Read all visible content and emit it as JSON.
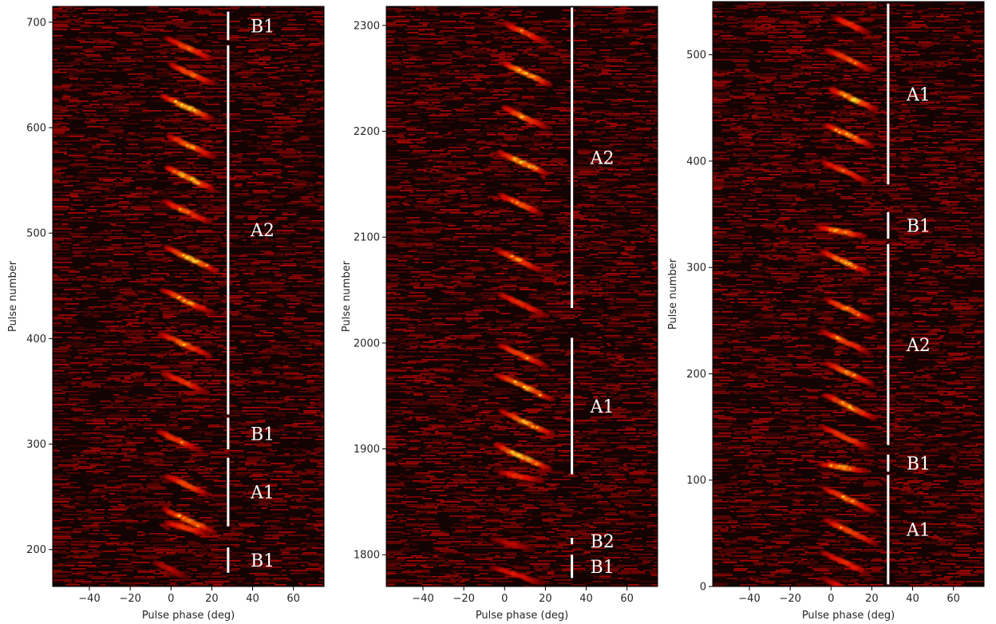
{
  "chart_data": [
    {
      "type": "heatmap",
      "xlabel": "Pulse phase (deg)",
      "ylabel": "Pulse number",
      "xlim": [
        -58,
        75
      ],
      "ylim": [
        165,
        715
      ],
      "xticks": [
        -40,
        -20,
        0,
        20,
        40,
        60
      ],
      "xtick_labels": [
        "−40",
        "−20",
        "0",
        "20",
        "40",
        "60"
      ],
      "yticks": [
        200,
        300,
        400,
        500,
        600,
        700
      ],
      "ytick_labels": [
        "200",
        "300",
        "400",
        "500",
        "600",
        "700"
      ],
      "drift_bands": [
        {
          "p": 685,
          "phi0": -2,
          "slope": 0.9,
          "span": 22,
          "strength": 0.8
        },
        {
          "p": 660,
          "phi0": 0,
          "slope": 0.9,
          "span": 20,
          "strength": 0.85
        },
        {
          "p": 630,
          "phi0": -4,
          "slope": 0.9,
          "span": 24,
          "strength": 1.0
        },
        {
          "p": 592,
          "phi0": -1,
          "slope": 0.9,
          "span": 22,
          "strength": 0.85
        },
        {
          "p": 562,
          "phi0": -2,
          "slope": 0.9,
          "span": 22,
          "strength": 1.0
        },
        {
          "p": 530,
          "phi0": -3,
          "slope": 0.9,
          "span": 22,
          "strength": 0.8
        },
        {
          "p": 486,
          "phi0": -2,
          "slope": 0.9,
          "span": 24,
          "strength": 1.0
        },
        {
          "p": 446,
          "phi0": -4,
          "slope": 0.9,
          "span": 24,
          "strength": 0.85
        },
        {
          "p": 405,
          "phi0": -5,
          "slope": 0.9,
          "span": 24,
          "strength": 0.85
        },
        {
          "p": 368,
          "phi0": -4,
          "slope": 0.9,
          "span": 22,
          "strength": 0.7
        },
        {
          "p": 312,
          "phi0": -6,
          "slope": 0.9,
          "span": 20,
          "strength": 0.75
        },
        {
          "p": 270,
          "phi0": -2,
          "slope": 0.9,
          "span": 20,
          "strength": 0.8
        },
        {
          "p": 238,
          "phi0": -3,
          "slope": 0.9,
          "span": 24,
          "strength": 0.9
        },
        {
          "p": 225,
          "phi0": -2,
          "slope": 0.5,
          "span": 20,
          "strength": 0.75
        },
        {
          "p": 188,
          "phi0": -8,
          "slope": 0.9,
          "span": 16,
          "strength": 0.45
        }
      ],
      "mode_segments": [
        {
          "label": "B1",
          "start": 683,
          "end": 710
        },
        {
          "label": "A2",
          "start": 328,
          "end": 678
        },
        {
          "label": "B1",
          "start": 295,
          "end": 325
        },
        {
          "label": "A1",
          "start": 222,
          "end": 287
        },
        {
          "label": "B1",
          "start": 178,
          "end": 202
        }
      ],
      "segment_phase": 28,
      "label_phase": 39
    },
    {
      "type": "heatmap",
      "xlabel": "Pulse phase (deg)",
      "ylabel": "Pulse number",
      "xlim": [
        -58,
        75
      ],
      "ylim": [
        1770,
        2318
      ],
      "xticks": [
        -40,
        -20,
        0,
        20,
        40,
        60
      ],
      "xtick_labels": [
        "−40",
        "−20",
        "0",
        "20",
        "40",
        "60"
      ],
      "yticks": [
        1800,
        1900,
        2000,
        2100,
        2200,
        2300
      ],
      "ytick_labels": [
        "1800",
        "1900",
        "2000",
        "2100",
        "2200",
        "2300"
      ],
      "drift_bands": [
        {
          "p": 2302,
          "phi0": 0,
          "slope": 0.9,
          "span": 20,
          "strength": 0.75
        },
        {
          "p": 2264,
          "phi0": 0,
          "slope": 0.9,
          "span": 22,
          "strength": 1.0
        },
        {
          "p": 2222,
          "phi0": 0,
          "slope": 0.9,
          "span": 20,
          "strength": 0.85
        },
        {
          "p": 2180,
          "phi0": -2,
          "slope": 0.9,
          "span": 22,
          "strength": 1.0
        },
        {
          "p": 2140,
          "phi0": -2,
          "slope": 0.9,
          "span": 20,
          "strength": 0.8
        },
        {
          "p": 2088,
          "phi0": -4,
          "slope": 0.9,
          "span": 22,
          "strength": 0.8
        },
        {
          "p": 2046,
          "phi0": -2,
          "slope": 0.9,
          "span": 22,
          "strength": 0.7
        },
        {
          "p": 1998,
          "phi0": -2,
          "slope": 0.9,
          "span": 22,
          "strength": 0.8
        },
        {
          "p": 1970,
          "phi0": -3,
          "slope": 0.9,
          "span": 26,
          "strength": 1.0
        },
        {
          "p": 1936,
          "phi0": -2,
          "slope": 0.9,
          "span": 26,
          "strength": 0.9
        },
        {
          "p": 1904,
          "phi0": -4,
          "slope": 0.9,
          "span": 26,
          "strength": 1.0
        },
        {
          "p": 1878,
          "phi0": -2,
          "slope": 0.4,
          "span": 20,
          "strength": 0.7
        },
        {
          "p": 1815,
          "phi0": -6,
          "slope": 0.5,
          "span": 20,
          "strength": 0.45
        },
        {
          "p": 1788,
          "phi0": -6,
          "slope": 0.6,
          "span": 24,
          "strength": 0.6
        }
      ],
      "mode_segments": [
        {
          "label": "A2",
          "start": 2033,
          "end": 2317
        },
        {
          "label": "A1",
          "start": 1876,
          "end": 2005
        },
        {
          "label": "B2",
          "start": 1810,
          "end": 1816
        },
        {
          "label": "B1",
          "start": 1778,
          "end": 1800
        }
      ],
      "segment_phase": 33,
      "label_phase": 42
    },
    {
      "type": "heatmap",
      "xlabel": "Pulse phase (deg)",
      "ylabel": "Pulse number",
      "xlim": [
        -58,
        75
      ],
      "ylim": [
        0,
        550
      ],
      "xticks": [
        -40,
        -20,
        0,
        20,
        40,
        60
      ],
      "xtick_labels": [
        "−40",
        "−20",
        "0",
        "20",
        "40",
        "60"
      ],
      "yticks": [
        0,
        100,
        200,
        300,
        400,
        500
      ],
      "ytick_labels": [
        "0",
        "100",
        "200",
        "300",
        "400",
        "500"
      ],
      "drift_bands": [
        {
          "p": 535,
          "phi0": 2,
          "slope": 0.9,
          "span": 16,
          "strength": 0.7
        },
        {
          "p": 505,
          "phi0": -2,
          "slope": 0.9,
          "span": 22,
          "strength": 0.8
        },
        {
          "p": 468,
          "phi0": 0,
          "slope": 0.9,
          "span": 22,
          "strength": 1.0
        },
        {
          "p": 434,
          "phi0": -2,
          "slope": 0.9,
          "span": 22,
          "strength": 0.9
        },
        {
          "p": 400,
          "phi0": -4,
          "slope": 0.9,
          "span": 22,
          "strength": 0.75
        },
        {
          "p": 338,
          "phi0": -6,
          "slope": 0.4,
          "span": 22,
          "strength": 0.85
        },
        {
          "p": 315,
          "phi0": -4,
          "slope": 0.9,
          "span": 22,
          "strength": 0.9
        },
        {
          "p": 270,
          "phi0": -2,
          "slope": 0.9,
          "span": 22,
          "strength": 0.9
        },
        {
          "p": 240,
          "phi0": -4,
          "slope": 0.9,
          "span": 22,
          "strength": 0.8
        },
        {
          "p": 210,
          "phi0": -2,
          "slope": 0.9,
          "span": 22,
          "strength": 0.85
        },
        {
          "p": 180,
          "phi0": -3,
          "slope": 0.9,
          "span": 24,
          "strength": 0.9
        },
        {
          "p": 150,
          "phi0": -4,
          "slope": 0.9,
          "span": 22,
          "strength": 0.8
        },
        {
          "p": 115,
          "phi0": -4,
          "slope": 0.3,
          "span": 20,
          "strength": 0.95
        },
        {
          "p": 92,
          "phi0": -3,
          "slope": 0.9,
          "span": 24,
          "strength": 0.85
        },
        {
          "p": 62,
          "phi0": -2,
          "slope": 0.9,
          "span": 24,
          "strength": 0.8
        },
        {
          "p": 32,
          "phi0": -4,
          "slope": 0.9,
          "span": 22,
          "strength": 0.7
        },
        {
          "p": 8,
          "phi0": -4,
          "slope": 0.9,
          "span": 20,
          "strength": 0.55
        }
      ],
      "mode_segments": [
        {
          "label": "A1",
          "start": 378,
          "end": 548
        },
        {
          "label": "B1",
          "start": 327,
          "end": 352
        },
        {
          "label": "A2",
          "start": 133,
          "end": 322
        },
        {
          "label": "B1",
          "start": 108,
          "end": 124
        },
        {
          "label": "A1",
          "start": 2,
          "end": 105
        }
      ],
      "segment_phase": 28,
      "label_phase": 37
    }
  ]
}
